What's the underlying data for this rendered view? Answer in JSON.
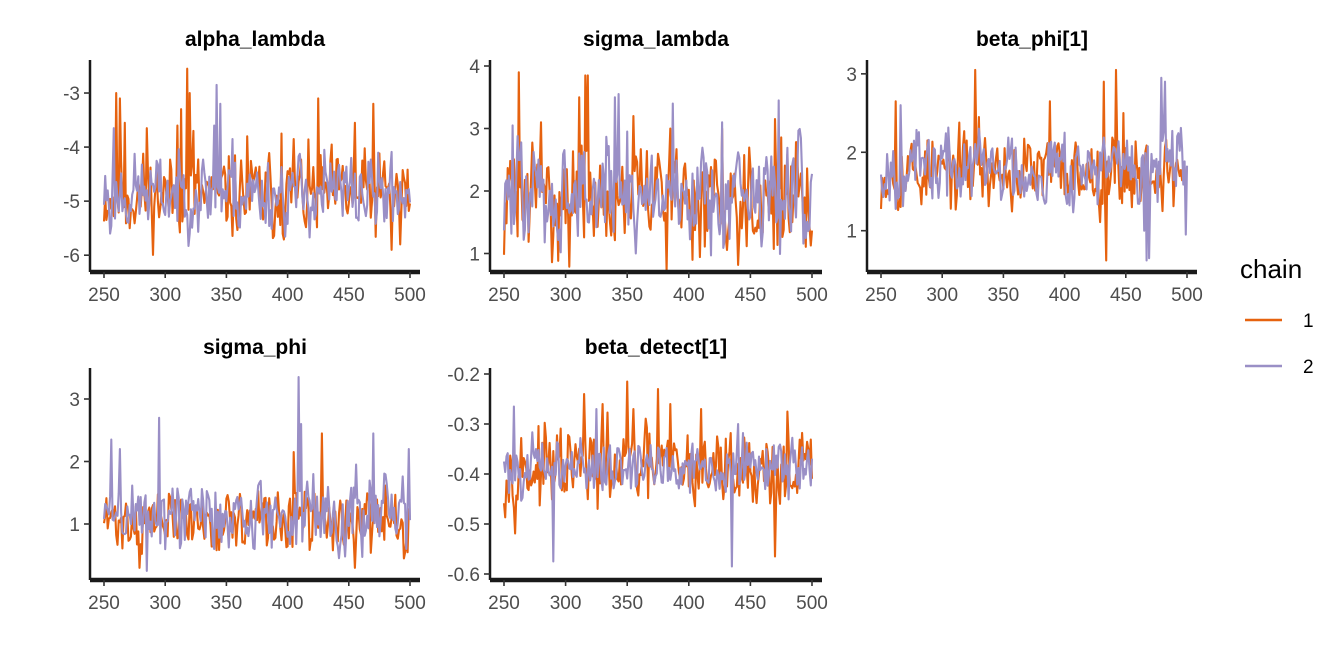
{
  "legend": {
    "title": "chain",
    "entries": [
      {
        "label": "1",
        "color": "#E6620F"
      },
      {
        "label": "2",
        "color": "#9A8FC6"
      }
    ]
  },
  "chart_data": [
    {
      "type": "line",
      "title": "alpha_lambda",
      "xlim": [
        250,
        500
      ],
      "ylim": [
        -6.2,
        -2.5
      ],
      "xticks": [
        250,
        300,
        350,
        400,
        450,
        500
      ],
      "yticks": [
        -3,
        -4,
        -5,
        -6
      ],
      "series": [
        {
          "name": "1",
          "color": "#E6620F",
          "x": [
            250,
            500
          ],
          "amplitude": 0.5,
          "mean": -4.9,
          "seed": 11,
          "peaks": [
            [
              260,
              -3.0
            ],
            [
              263,
              -3.1
            ],
            [
              267,
              -3.55
            ],
            [
              285,
              -3.65
            ],
            [
              310,
              -3.6
            ],
            [
              313,
              -3.3
            ],
            [
              318,
              -2.55
            ],
            [
              320,
              -3.0
            ],
            [
              323,
              -3.7
            ],
            [
              367,
              -3.8
            ],
            [
              395,
              -3.75
            ],
            [
              405,
              -3.85
            ],
            [
              425,
              -3.1
            ],
            [
              455,
              -3.55
            ],
            [
              470,
              -3.2
            ],
            [
              485,
              -5.9
            ],
            [
              492,
              -5.8
            ]
          ]
        },
        {
          "name": "2",
          "color": "#9A8FC6",
          "x": [
            250,
            500
          ],
          "amplitude": 0.45,
          "mean": -4.85,
          "seed": 23,
          "peaks": [
            [
              255,
              -5.6
            ],
            [
              258,
              -3.65
            ],
            [
              340,
              -3.6
            ],
            [
              342,
              -2.85
            ],
            [
              345,
              -3.2
            ],
            [
              355,
              -3.85
            ],
            [
              430,
              -4.05
            ]
          ]
        }
      ]
    },
    {
      "type": "line",
      "title": "sigma_lambda",
      "xlim": [
        250,
        500
      ],
      "ylim": [
        0.8,
        4.0
      ],
      "xticks": [
        250,
        300,
        350,
        400,
        450,
        500
      ],
      "yticks": [
        1,
        2,
        3,
        4
      ],
      "series": [
        {
          "name": "1",
          "color": "#E6620F",
          "x": [
            250,
            500
          ],
          "amplitude": 0.55,
          "mean": 1.9,
          "seed": 31,
          "peaks": [
            [
              262,
              3.9
            ],
            [
              280,
              3.1
            ],
            [
              311,
              3.5
            ],
            [
              316,
              3.85
            ],
            [
              318,
              3.85
            ],
            [
              355,
              3.2
            ],
            [
              385,
              3.0
            ],
            [
              403,
              0.9
            ],
            [
              427,
              3.0
            ],
            [
              470,
              3.15
            ]
          ]
        },
        {
          "name": "2",
          "color": "#9A8FC6",
          "x": [
            250,
            500
          ],
          "amplitude": 0.55,
          "mean": 1.95,
          "seed": 47,
          "peaks": [
            [
              257,
              3.05
            ],
            [
              340,
              3.5
            ],
            [
              343,
              3.55
            ],
            [
              350,
              2.95
            ],
            [
              387,
              3.4
            ],
            [
              427,
              3.1
            ],
            [
              473,
              3.45
            ]
          ]
        }
      ]
    },
    {
      "type": "line",
      "title": "beta_phi[1]",
      "xlim": [
        250,
        500
      ],
      "ylim": [
        0.55,
        3.1
      ],
      "xticks": [
        250,
        300,
        350,
        400,
        450,
        500
      ],
      "yticks": [
        1,
        2,
        3
      ],
      "series": [
        {
          "name": "1",
          "color": "#E6620F",
          "x": [
            250,
            500
          ],
          "amplitude": 0.3,
          "mean": 1.75,
          "seed": 53,
          "peaks": [
            [
              262,
              2.65
            ],
            [
              327,
              3.05
            ],
            [
              330,
              2.45
            ],
            [
              388,
              2.65
            ],
            [
              432,
              2.9
            ],
            [
              434,
              0.62
            ],
            [
              442,
              3.05
            ],
            [
              448,
              2.5
            ]
          ]
        },
        {
          "name": "2",
          "color": "#9A8FC6",
          "x": [
            250,
            500
          ],
          "amplitude": 0.3,
          "mean": 1.8,
          "seed": 67,
          "peaks": [
            [
              266,
              2.6
            ],
            [
              330,
              2.3
            ],
            [
              400,
              2.25
            ],
            [
              465,
              1.0
            ],
            [
              467,
              0.62
            ],
            [
              469,
              0.65
            ],
            [
              479,
              2.95
            ],
            [
              482,
              2.9
            ],
            [
              499,
              0.95
            ]
          ]
        }
      ]
    },
    {
      "type": "line",
      "title": "sigma_phi",
      "xlim": [
        250,
        500
      ],
      "ylim": [
        0.2,
        3.4
      ],
      "xticks": [
        250,
        300,
        350,
        400,
        450,
        500
      ],
      "yticks": [
        1,
        2,
        3
      ],
      "series": [
        {
          "name": "1",
          "color": "#E6620F",
          "x": [
            250,
            500
          ],
          "amplitude": 0.3,
          "mean": 1.05,
          "seed": 71,
          "peaks": [
            [
              279,
              0.3
            ],
            [
              405,
              2.15
            ],
            [
              428,
              2.45
            ],
            [
              455,
              0.3
            ],
            [
              495,
              0.45
            ]
          ]
        },
        {
          "name": "2",
          "color": "#9A8FC6",
          "x": [
            250,
            500
          ],
          "amplitude": 0.38,
          "mean": 1.15,
          "seed": 89,
          "peaks": [
            [
              256,
              2.35
            ],
            [
              263,
              2.2
            ],
            [
              285,
              0.25
            ],
            [
              295,
              2.7
            ],
            [
              409,
              3.35
            ],
            [
              411,
              2.6
            ],
            [
              470,
              2.45
            ],
            [
              499,
              2.2
            ]
          ]
        }
      ]
    },
    {
      "type": "line",
      "title": "beta_detect[1]",
      "xlim": [
        250,
        500
      ],
      "ylim": [
        -0.6,
        -0.2
      ],
      "xticks": [
        250,
        300,
        350,
        400,
        450,
        500
      ],
      "yticks": [
        -0.2,
        -0.3,
        -0.4,
        -0.5,
        -0.6
      ],
      "series": [
        {
          "name": "1",
          "color": "#E6620F",
          "x": [
            250,
            500
          ],
          "amplitude": 0.05,
          "mean": -0.39,
          "seed": 97,
          "peaks": [
            [
              315,
              -0.24
            ],
            [
              330,
              -0.26
            ],
            [
              350,
              -0.215
            ],
            [
              355,
              -0.27
            ],
            [
              375,
              -0.23
            ],
            [
              385,
              -0.26
            ],
            [
              410,
              -0.27
            ],
            [
              470,
              -0.565
            ],
            [
              480,
              -0.275
            ]
          ]
        },
        {
          "name": "2",
          "color": "#9A8FC6",
          "x": [
            250,
            500
          ],
          "amplitude": 0.035,
          "mean": -0.385,
          "seed": 101,
          "peaks": [
            [
              258,
              -0.265
            ],
            [
              290,
              -0.575
            ],
            [
              325,
              -0.27
            ],
            [
              435,
              -0.585
            ],
            [
              440,
              -0.3
            ]
          ]
        }
      ]
    }
  ]
}
